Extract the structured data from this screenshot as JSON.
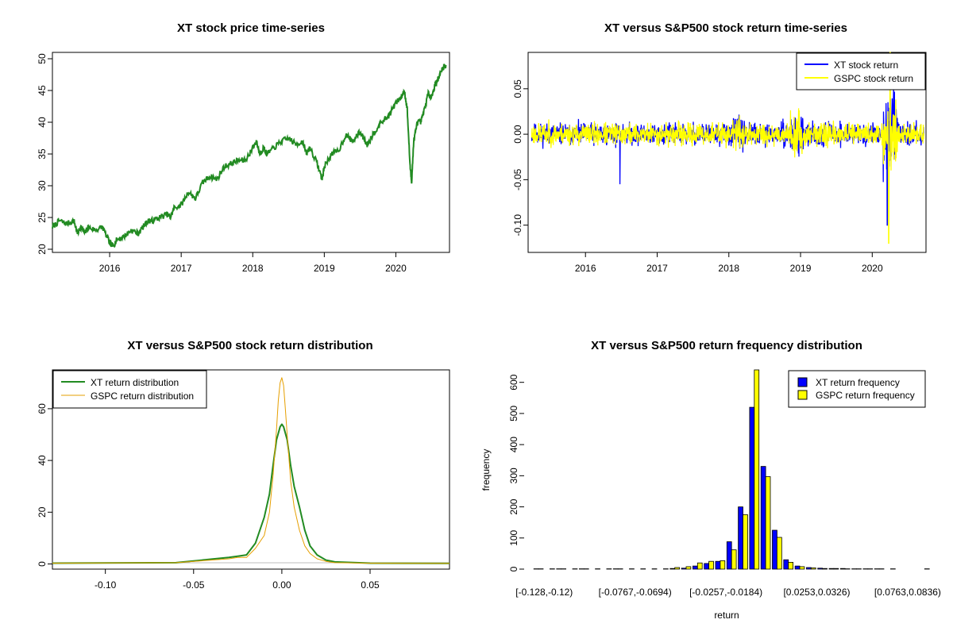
{
  "chart_data": [
    {
      "type": "line",
      "title": "XT stock price time-series",
      "xlabel": "",
      "ylabel": "",
      "x_ticks": [
        "2016",
        "2017",
        "2018",
        "2019",
        "2020"
      ],
      "y_ticks": [
        20,
        25,
        30,
        35,
        40,
        45,
        50
      ],
      "xlim": [
        2015.2,
        2020.75
      ],
      "ylim": [
        19.5,
        51
      ],
      "colors": {
        "line": "#228B22"
      },
      "series": [
        {
          "x": [
            2015.2,
            2015.3,
            2015.4,
            2015.5,
            2015.55,
            2015.6,
            2015.65,
            2015.7,
            2015.8,
            2015.9,
            2016.0,
            2016.05,
            2016.1,
            2016.2,
            2016.3,
            2016.4,
            2016.5,
            2016.55,
            2016.6,
            2016.7,
            2016.8,
            2016.85,
            2016.9,
            2017.0,
            2017.1,
            2017.2,
            2017.3,
            2017.4,
            2017.5,
            2017.6,
            2017.7,
            2017.8,
            2017.9,
            2018.0,
            2018.05,
            2018.1,
            2018.15,
            2018.2,
            2018.3,
            2018.4,
            2018.5,
            2018.6,
            2018.7,
            2018.75,
            2018.8,
            2018.9,
            2018.97,
            2019.0,
            2019.1,
            2019.2,
            2019.3,
            2019.4,
            2019.5,
            2019.6,
            2019.65,
            2019.7,
            2019.8,
            2019.9,
            2020.0,
            2020.08,
            2020.12,
            2020.16,
            2020.2,
            2020.22,
            2020.25,
            2020.3,
            2020.35,
            2020.4,
            2020.45,
            2020.5,
            2020.55,
            2020.6,
            2020.65,
            2020.7
          ],
          "y": [
            23.5,
            24.5,
            24,
            24.5,
            22.5,
            23.5,
            22.5,
            23.5,
            23,
            23.5,
            21,
            20.5,
            21.5,
            22,
            23,
            22.5,
            24,
            24.5,
            24.5,
            25,
            25.5,
            25,
            26.5,
            27,
            29,
            28,
            30.5,
            31.5,
            31,
            33,
            33.5,
            34,
            34,
            36,
            37,
            35,
            36,
            35,
            36,
            37,
            37.5,
            36.5,
            37,
            35,
            36,
            33.5,
            31,
            33,
            35,
            35.5,
            38,
            37,
            38.5,
            36.5,
            37.5,
            38.5,
            40,
            41,
            43,
            44,
            45,
            42,
            33,
            30.5,
            37,
            40,
            40,
            42,
            44.5,
            44,
            46,
            47,
            48.5,
            49
          ]
        }
      ]
    },
    {
      "type": "line",
      "title": "XT versus S&P500 stock return time-series",
      "xlabel": "",
      "ylabel": "",
      "x_ticks": [
        "2016",
        "2017",
        "2018",
        "2019",
        "2020"
      ],
      "y_ticks": [
        "-0.10",
        "-0.05",
        "0.00",
        "0.05"
      ],
      "xlim": [
        2015.2,
        2020.75
      ],
      "ylim": [
        -0.13,
        0.09
      ],
      "legend_position": "top-right",
      "series": [
        {
          "name": "XT stock return",
          "color": "#0000FF"
        },
        {
          "name": "GSPC stock return",
          "color": "#FFFF00"
        }
      ]
    },
    {
      "type": "line",
      "title": "XT versus S&P500 stock return distribution",
      "xlabel": "",
      "ylabel": "",
      "x_ticks": [
        "-0.10",
        "-0.05",
        "0.00",
        "0.05"
      ],
      "y_ticks": [
        0,
        20,
        40,
        60
      ],
      "xlim": [
        -0.13,
        0.095
      ],
      "ylim": [
        -2,
        75
      ],
      "legend_position": "top-left",
      "series": [
        {
          "name": "XT return distribution",
          "color": "#228B22",
          "x": [
            -0.13,
            -0.06,
            -0.03,
            -0.025,
            -0.02,
            -0.015,
            -0.01,
            -0.007,
            -0.005,
            -0.003,
            -0.001,
            0.0,
            0.001,
            0.003,
            0.005,
            0.007,
            0.01,
            0.013,
            0.016,
            0.02,
            0.025,
            0.03,
            0.05,
            0.095
          ],
          "y": [
            0.3,
            0.5,
            2.5,
            3,
            3.5,
            8,
            18,
            27,
            38,
            48,
            53,
            54,
            53,
            48,
            38,
            30,
            22,
            13,
            7,
            3.5,
            1.5,
            0.8,
            0.3,
            0.2
          ]
        },
        {
          "name": "GSPC return distribution",
          "color": "#E69F00",
          "x": [
            -0.13,
            -0.06,
            -0.03,
            -0.025,
            -0.02,
            -0.015,
            -0.01,
            -0.007,
            -0.005,
            -0.003,
            -0.002,
            -0.001,
            0.0,
            0.001,
            0.002,
            0.003,
            0.005,
            0.007,
            0.01,
            0.013,
            0.016,
            0.02,
            0.025,
            0.03,
            0.05,
            0.095
          ],
          "y": [
            0.3,
            0.5,
            2,
            2.5,
            2.5,
            6,
            11,
            20,
            34,
            52,
            63,
            70,
            72,
            69,
            60,
            50,
            32,
            22,
            13,
            7,
            4,
            2,
            1,
            0.5,
            0.3,
            0.2
          ]
        }
      ]
    },
    {
      "type": "bar",
      "title": "XT versus S&P500 return frequency distribution",
      "xlabel": "return",
      "ylabel": "frequency",
      "y_ticks": [
        0,
        100,
        200,
        300,
        400,
        500,
        600
      ],
      "ylim": [
        0,
        640
      ],
      "legend_position": "top-right",
      "tick_labels": [
        "[-0.128,-0.12)",
        "[-0.0767,-0.0694)",
        "[-0.0257,-0.0184)",
        "[0.0253,0.0326)",
        "[0.0763,0.0836)"
      ],
      "series": [
        {
          "name": "XT return frequency",
          "color": "#0000FF",
          "values": [
            1,
            0,
            1,
            0,
            1,
            0,
            0,
            1,
            0,
            0,
            0,
            0,
            2,
            3,
            10,
            18,
            25,
            88,
            200,
            520,
            330,
            125,
            30,
            10,
            5,
            3,
            2,
            2,
            1,
            1,
            1,
            0,
            0,
            0,
            0
          ]
        },
        {
          "name": "GSPC return frequency",
          "color": "#FFFF00",
          "values": [
            1,
            1,
            1,
            1,
            1,
            1,
            1,
            1,
            1,
            1,
            1,
            1,
            5,
            8,
            20,
            25,
            27,
            62,
            175,
            650,
            297,
            102,
            22,
            8,
            4,
            2,
            2,
            1,
            1,
            1,
            1,
            1,
            0,
            0,
            1
          ]
        }
      ]
    }
  ]
}
